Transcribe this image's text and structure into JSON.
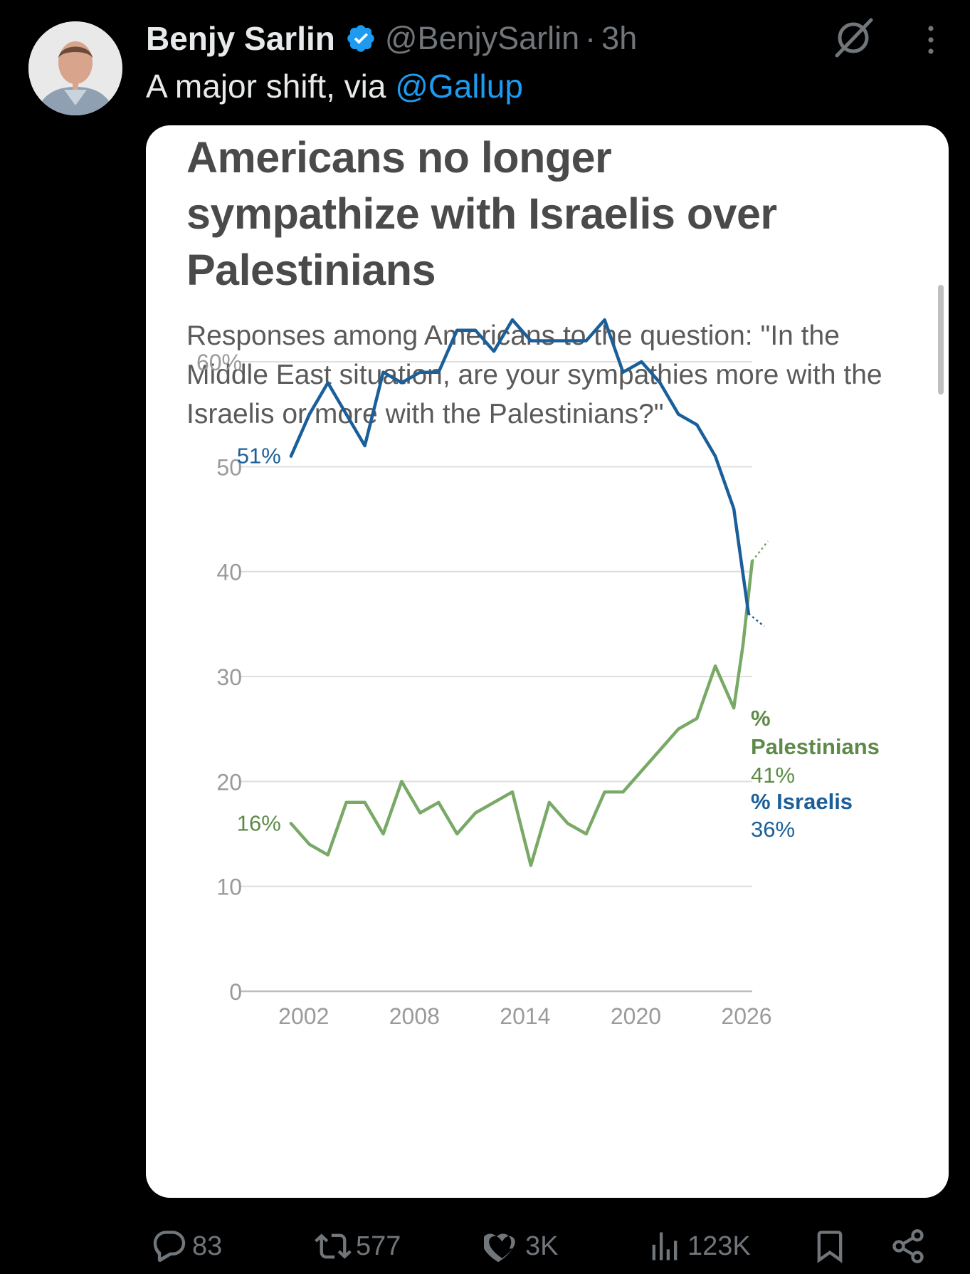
{
  "tweet": {
    "author_name": "Benjy Sarlin",
    "handle": "@BenjySarlin",
    "separator": "·",
    "time": "3h",
    "text_prefix": "A major shift, via ",
    "mention": "@Gallup"
  },
  "icons": {
    "verified": "verified-badge-icon",
    "grok": "grok-icon",
    "more": "more-icon"
  },
  "stats": {
    "replies": "83",
    "reposts": "577",
    "likes": "3K",
    "views": "123K"
  },
  "colors": {
    "israelis": "#1a5f99",
    "palestinians": "#79a966",
    "palestinians_label": "#5d8a48",
    "verified": "#1d9bf0",
    "link": "#1d9bf0"
  },
  "chart_data": {
    "type": "line",
    "title": "Americans no longer sympathize with Israelis over Palestinians",
    "title_lines": [
      "Americans no longer",
      "sympathize with Israelis over",
      "Palestinians"
    ],
    "subtitle": "Responses among Americans to the question: \"In the Middle East situation, are your sympathies more with the Israelis or more with the Palestinians?\"",
    "xlabel": "",
    "ylabel": "",
    "ylim": [
      0,
      60
    ],
    "xlim": [
      1999,
      2026
    ],
    "x_ticks": [
      "2002",
      "2008",
      "2014",
      "2020",
      "2026"
    ],
    "y_ticks": [
      "0",
      "10",
      "20",
      "30",
      "40",
      "50",
      "60%"
    ],
    "grid": true,
    "x": [
      2001,
      2002,
      2003,
      2005,
      2006,
      2007,
      2008,
      2009,
      2010,
      2011,
      2012,
      2013,
      2014,
      2015,
      2016,
      2017,
      2018,
      2019,
      2020,
      2021,
      2022,
      2023,
      2024,
      2025,
      2025.8
    ],
    "series": [
      {
        "name": "% Israelis",
        "values": [
          51,
          55,
          58,
          52,
          59,
          58,
          59,
          59,
          63,
          63,
          61,
          64,
          62,
          62,
          62,
          62,
          64,
          59,
          60,
          58,
          55,
          54,
          51,
          46,
          36
        ],
        "start_label": "51%",
        "end_label_name": "% Israelis",
        "end_label_value": "36%"
      },
      {
        "name": "% Palestinians",
        "values": [
          16,
          14,
          13,
          18,
          18,
          15,
          20,
          17,
          18,
          15,
          17,
          19,
          12,
          18,
          16,
          15,
          19,
          19,
          21,
          23,
          25,
          26,
          31,
          27,
          33,
          41
        ],
        "x": [
          2001,
          2002,
          2003,
          2004,
          2005,
          2006,
          2007,
          2008,
          2009,
          2010,
          2011,
          2013,
          2014,
          2015,
          2016,
          2017,
          2018,
          2019,
          2020,
          2021,
          2022,
          2023,
          2024,
          2025,
          2025.5,
          2026
        ],
        "start_label": "16%",
        "end_label_name_lines": [
          "%",
          "Palestinians"
        ],
        "end_label_value": "41%"
      }
    ]
  }
}
